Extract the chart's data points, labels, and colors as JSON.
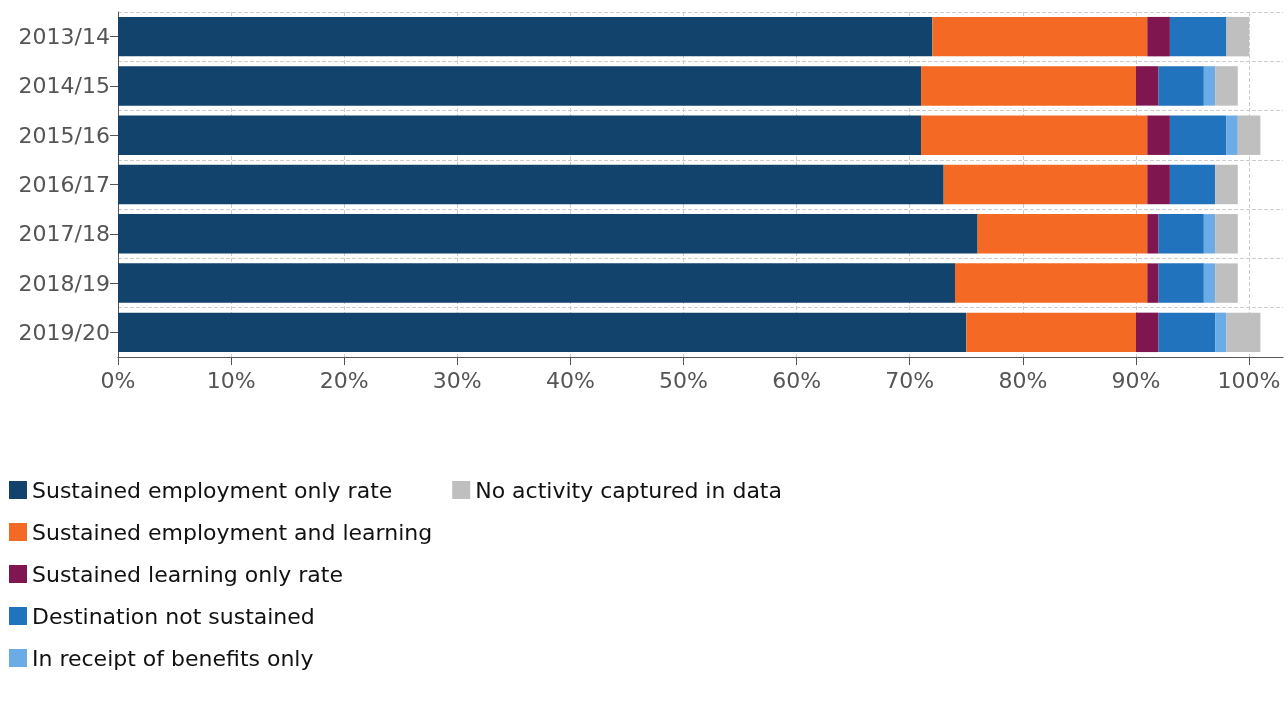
{
  "chart_data": {
    "type": "bar",
    "orientation": "horizontal",
    "stacked": true,
    "categories": [
      "2013/14",
      "2014/15",
      "2015/16",
      "2016/17",
      "2017/18",
      "2018/19",
      "2019/20"
    ],
    "series": [
      {
        "name": "Sustained employment only rate",
        "color": "#12436d",
        "values": [
          72,
          71,
          71,
          73,
          76,
          74,
          75
        ]
      },
      {
        "name": "Sustained employment and learning",
        "color": "#f46a25",
        "values": [
          19,
          19,
          20,
          18,
          15,
          17,
          15
        ]
      },
      {
        "name": "Sustained learning only rate",
        "color": "#801650",
        "values": [
          2,
          2,
          2,
          2,
          1,
          1,
          2
        ]
      },
      {
        "name": "Destination not sustained",
        "color": "#2073bc",
        "values": [
          5,
          4,
          5,
          4,
          4,
          4,
          5
        ]
      },
      {
        "name": "In receipt of benefits only",
        "color": "#6bace6",
        "values": [
          0,
          1,
          1,
          0,
          1,
          1,
          1
        ]
      },
      {
        "name": "No activity captured in data",
        "color": "#bfbfbf",
        "values": [
          2,
          2,
          2,
          2,
          2,
          2,
          3
        ]
      }
    ],
    "xlim": [
      0,
      103
    ],
    "xticks": [
      {
        "value": 0,
        "label": "0%"
      },
      {
        "value": 10,
        "label": "10%"
      },
      {
        "value": 20,
        "label": "20%"
      },
      {
        "value": 30,
        "label": "30%"
      },
      {
        "value": 40,
        "label": "40%"
      },
      {
        "value": 50,
        "label": "50%"
      },
      {
        "value": 60,
        "label": "60%"
      },
      {
        "value": 70,
        "label": "70%"
      },
      {
        "value": 80,
        "label": "80%"
      },
      {
        "value": 90,
        "label": "90%"
      },
      {
        "value": 100,
        "label": "100%"
      }
    ],
    "grid": true,
    "legend": "bottom left"
  }
}
